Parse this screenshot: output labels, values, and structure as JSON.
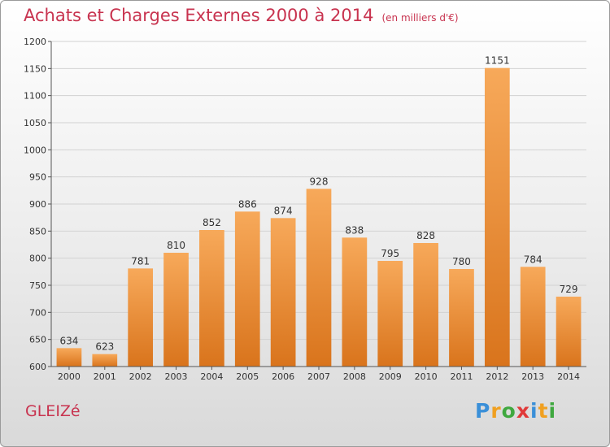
{
  "chart_data": {
    "type": "bar",
    "title": "Achats et Charges Externes 2000 à 2014",
    "subtitle": "(en milliers d'€)",
    "xlabel": "",
    "ylabel": "",
    "ylim": [
      600,
      1200
    ],
    "yticks": [
      600,
      650,
      700,
      750,
      800,
      850,
      900,
      950,
      1000,
      1050,
      1100,
      1150,
      1200
    ],
    "grid": true,
    "categories": [
      "2000",
      "2001",
      "2002",
      "2003",
      "2004",
      "2005",
      "2006",
      "2007",
      "2008",
      "2009",
      "2010",
      "2011",
      "2012",
      "2013",
      "2014"
    ],
    "values": [
      634,
      623,
      781,
      810,
      852,
      886,
      874,
      928,
      838,
      795,
      828,
      780,
      1151,
      784,
      729
    ]
  },
  "commune": "GLEIZé",
  "logo": {
    "letters": [
      "P",
      "r",
      "o",
      "x",
      "i",
      "t",
      "i"
    ],
    "colors": [
      "#3a8fd8",
      "#f0a020",
      "#3fa83f",
      "#e03a3a",
      "#3a8fd8",
      "#f0a020",
      "#3fa83f"
    ]
  },
  "colors": {
    "bar_top": "#f7a95a",
    "bar_bottom": "#d9741c",
    "text_accent": "#c8334f"
  }
}
